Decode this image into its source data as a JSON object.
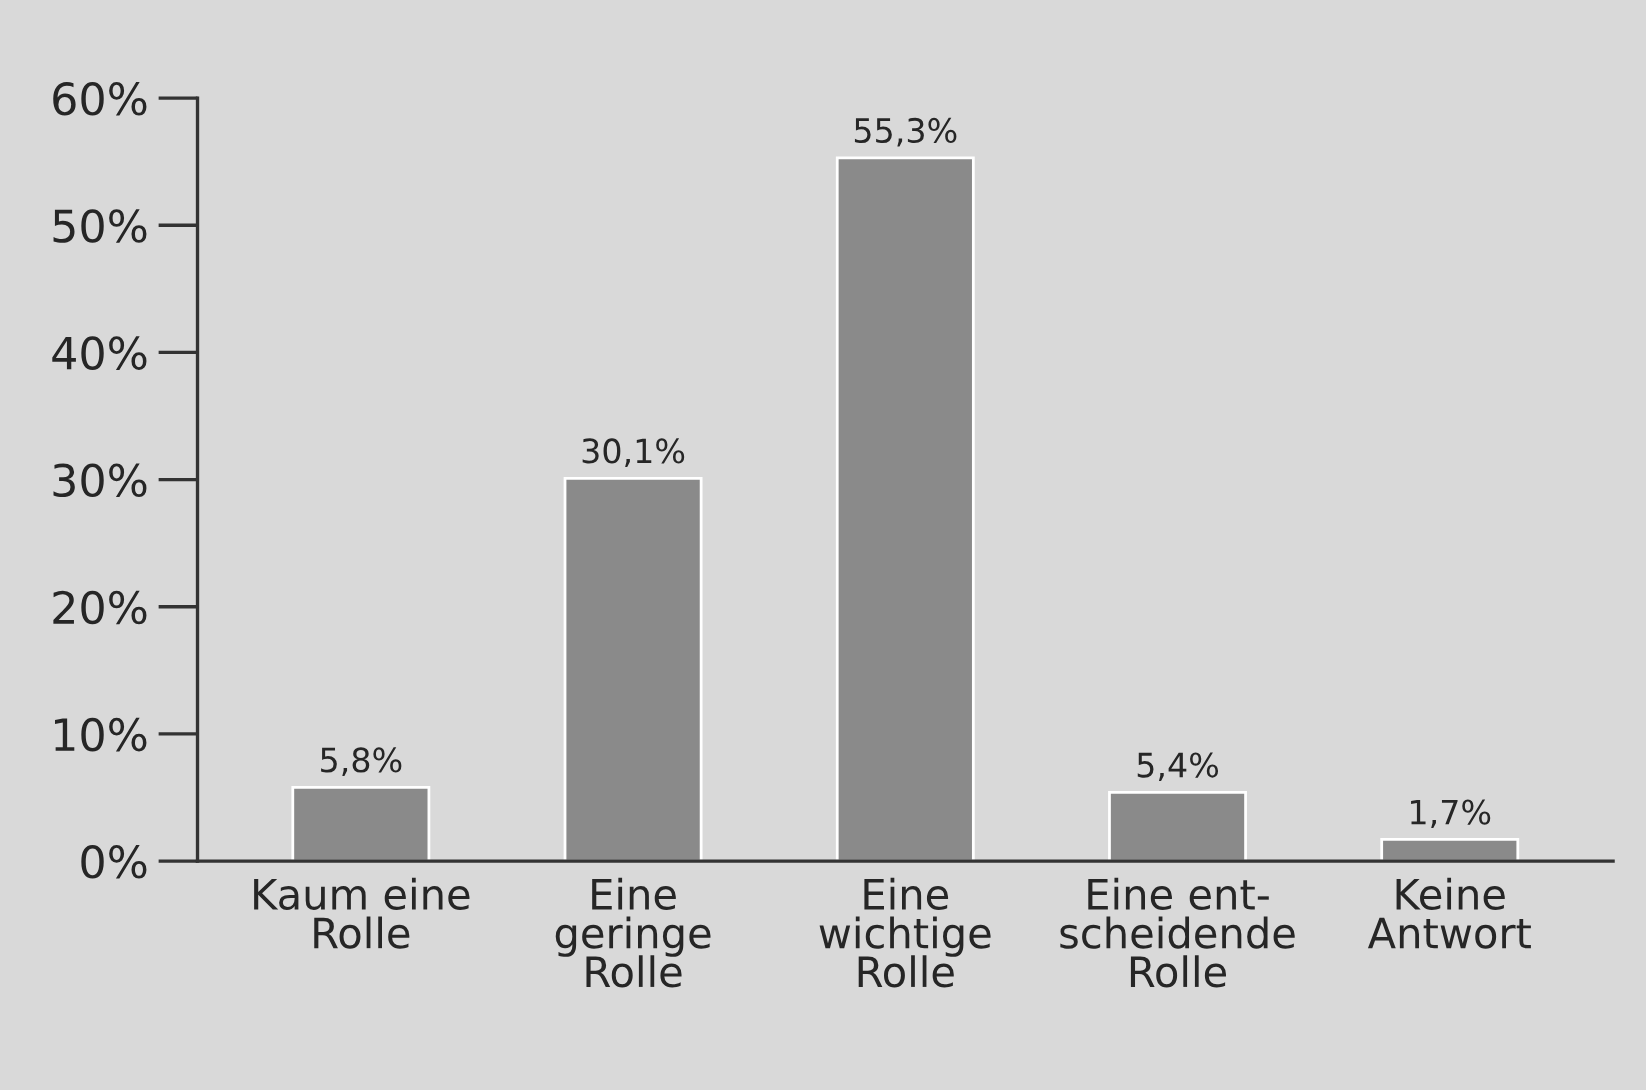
{
  "chart_data": {
    "type": "bar",
    "categories": [
      "Kaum eine\nRolle",
      "Eine\ngeringe\nRolle",
      "Eine\nwichtige\nRolle",
      "Eine ent-\nscheidende\nRolle",
      "Keine\nAntwort"
    ],
    "values": [
      5.8,
      30.1,
      55.3,
      5.4,
      1.7
    ],
    "value_labels": [
      "5,8%",
      "30,1%",
      "55,3%",
      "5,4%",
      "1,7%"
    ],
    "color": "#8a8a8a",
    "ylim": [
      0,
      60
    ],
    "yticks": [
      {
        "value": 0,
        "label": "0%"
      },
      {
        "value": 10,
        "label": "10%"
      },
      {
        "value": 20,
        "label": "20%"
      },
      {
        "value": 30,
        "label": "30%"
      },
      {
        "value": 40,
        "label": "40%"
      },
      {
        "value": 50,
        "label": "50%"
      },
      {
        "value": 60,
        "label": "60%"
      }
    ],
    "grid": false,
    "legend": false
  }
}
